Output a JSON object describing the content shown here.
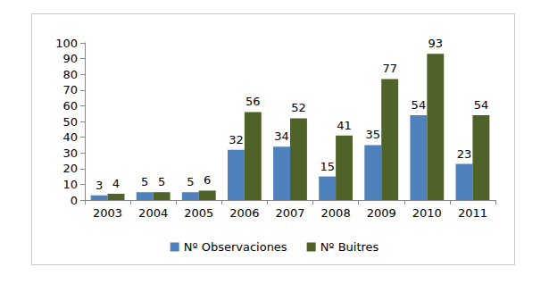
{
  "chart_data": {
    "type": "bar",
    "categories": [
      "2003",
      "2004",
      "2005",
      "2006",
      "2007",
      "2008",
      "2009",
      "2010",
      "2011"
    ],
    "series": [
      {
        "name": "Nº Observaciones",
        "color": "#4f81bd",
        "values": [
          3,
          5,
          5,
          32,
          34,
          15,
          35,
          54,
          23
        ]
      },
      {
        "name": "Nº Buitres",
        "color": "#4f6228",
        "values": [
          4,
          5,
          6,
          56,
          52,
          41,
          77,
          93,
          54
        ]
      }
    ],
    "ylim": [
      0,
      100
    ],
    "yticks": [
      0,
      10,
      20,
      30,
      40,
      50,
      60,
      70,
      80,
      90,
      100
    ],
    "grid": false,
    "legend": "bottom",
    "data_labels": true
  }
}
